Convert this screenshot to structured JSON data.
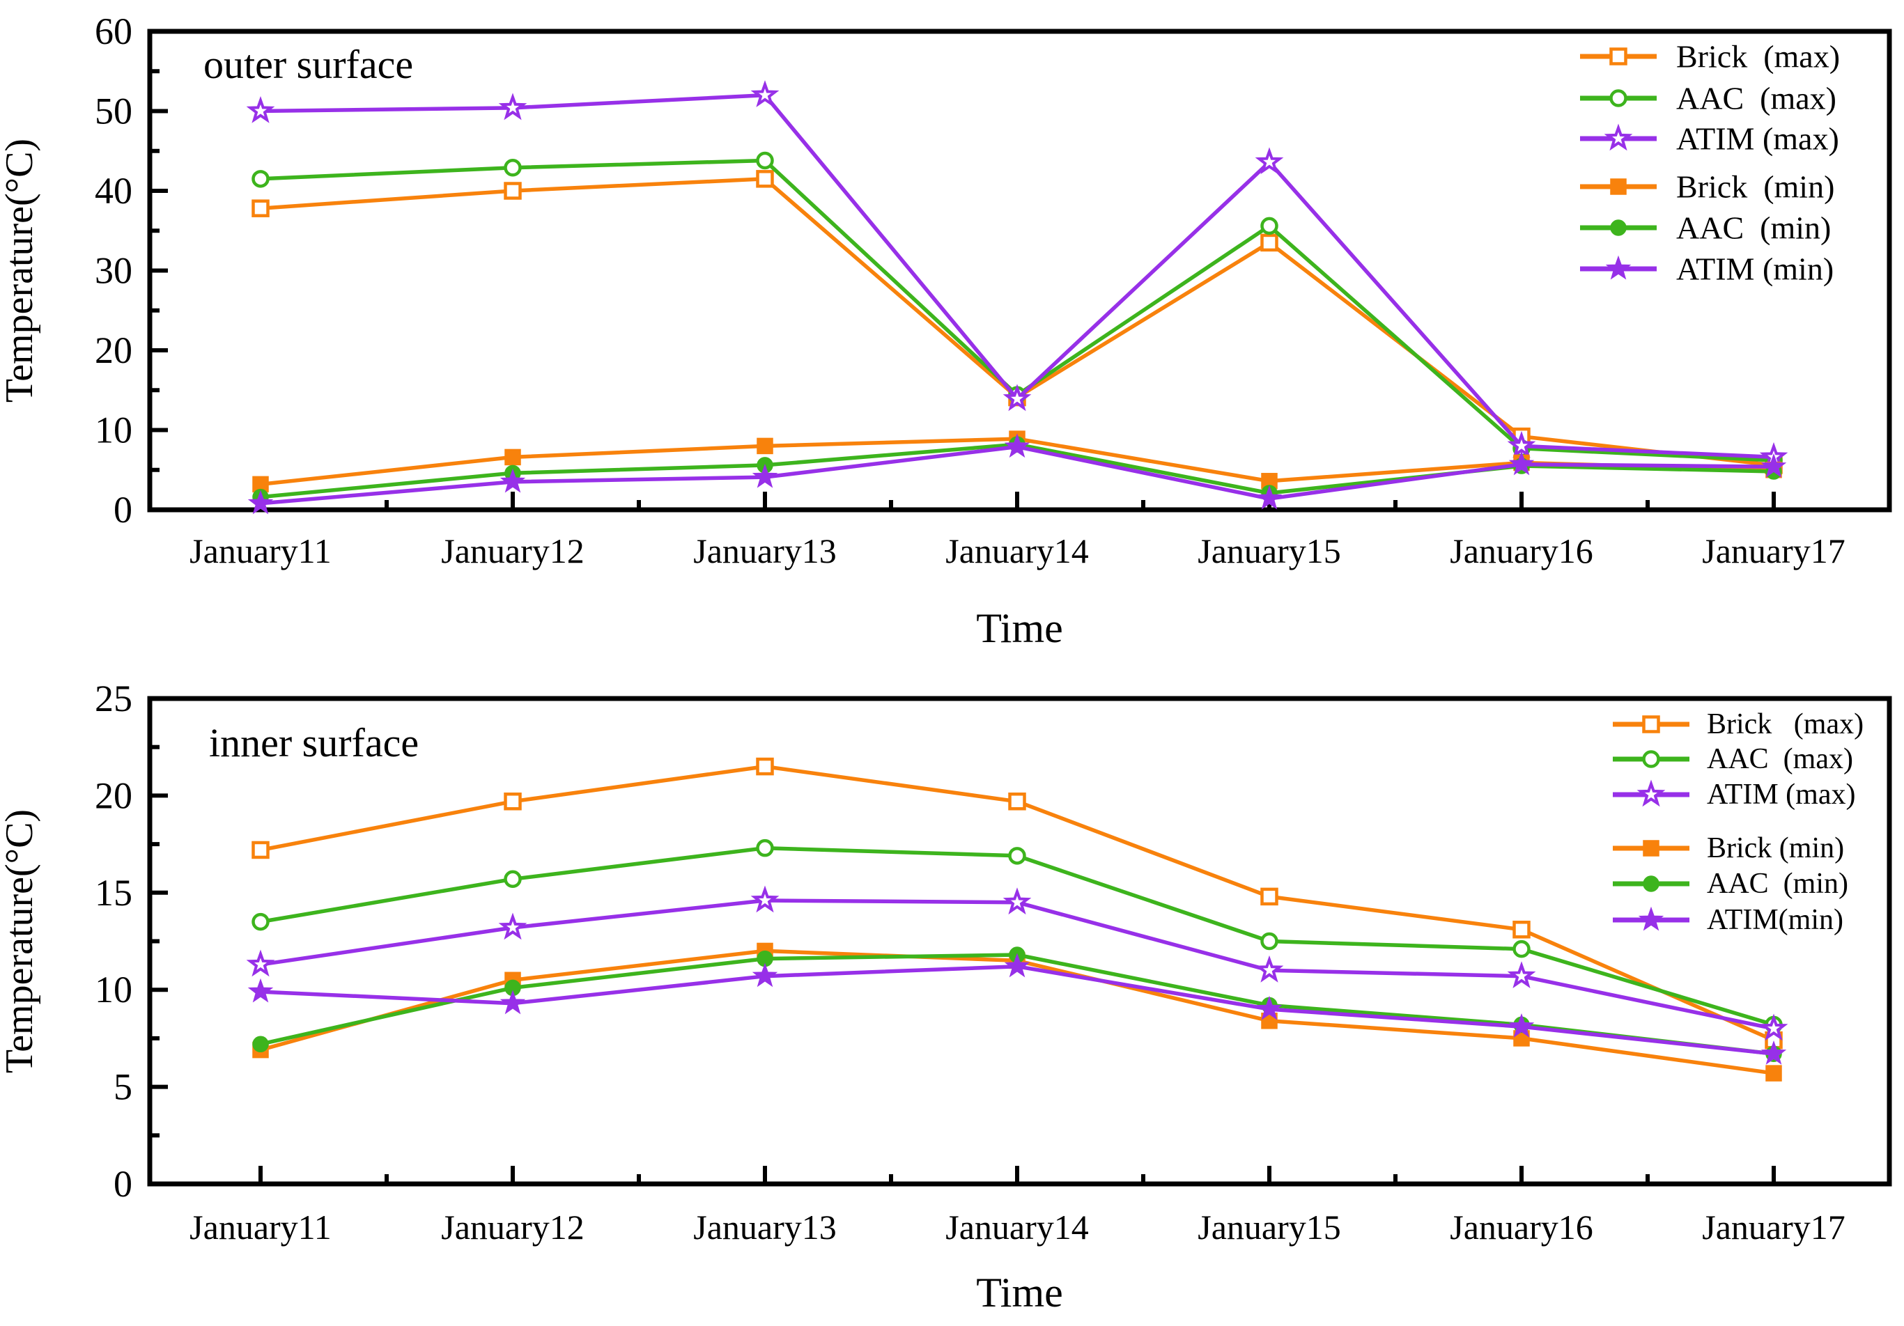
{
  "figure": {
    "background": "#ffffff",
    "axis_color": "#000000"
  },
  "colors": {
    "brick": "#F8820C",
    "aac": "#3DB41D",
    "atim": "#9730E8",
    "axis": "#000000",
    "marker_open_fill": "#ffffff"
  },
  "chart_data": [
    {
      "id": "outer",
      "type": "line",
      "panel_label": "outer surface",
      "xlabel": "Time",
      "ylabel": "Temperature(°C)",
      "categories": [
        "January11",
        "January12",
        "January13",
        "January14",
        "January15",
        "January16",
        "January17"
      ],
      "ylim": [
        0,
        60
      ],
      "ytick_major": 10,
      "ytick_minor": 5,
      "ytick_labels": [
        "0",
        "10",
        "20",
        "30",
        "40",
        "50",
        "60"
      ],
      "grid": false,
      "legend_position": "top-right",
      "series": [
        {
          "name": "Brick  (max)",
          "color_key": "brick",
          "marker": "square",
          "fill": "open",
          "values": [
            37.8,
            40.0,
            41.5,
            14.1,
            33.5,
            9.2,
            5.6
          ]
        },
        {
          "name": "AAC  (max)",
          "color_key": "aac",
          "marker": "circle",
          "fill": "open",
          "values": [
            41.5,
            42.9,
            43.8,
            14.4,
            35.6,
            7.7,
            6.2
          ]
        },
        {
          "name": "ATIM (max)",
          "color_key": "atim",
          "marker": "star",
          "fill": "open",
          "values": [
            50.0,
            50.4,
            52.0,
            13.9,
            43.6,
            8.0,
            6.6
          ]
        },
        {
          "name": "Brick  (min)",
          "color_key": "brick",
          "marker": "square",
          "fill": "solid",
          "values": [
            3.2,
            6.6,
            8.0,
            8.9,
            3.6,
            5.9,
            5.0
          ]
        },
        {
          "name": "AAC  (min)",
          "color_key": "aac",
          "marker": "circle",
          "fill": "solid",
          "values": [
            1.6,
            4.6,
            5.6,
            8.2,
            2.1,
            5.5,
            4.8
          ]
        },
        {
          "name": "ATIM (min)",
          "color_key": "atim",
          "marker": "star",
          "fill": "solid",
          "values": [
            0.8,
            3.5,
            4.1,
            7.9,
            1.4,
            5.7,
            5.4
          ]
        }
      ]
    },
    {
      "id": "inner",
      "type": "line",
      "panel_label": "inner surface",
      "xlabel": "Time",
      "ylabel": "Temperature(°C)",
      "categories": [
        "January11",
        "January12",
        "January13",
        "January14",
        "January15",
        "January16",
        "January17"
      ],
      "ylim": [
        0,
        25
      ],
      "ytick_major": 5,
      "ytick_minor": 2.5,
      "ytick_labels": [
        "0",
        "5",
        "10",
        "15",
        "20",
        "25"
      ],
      "grid": false,
      "legend_position": "top-right",
      "series": [
        {
          "name": "Brick   (max)",
          "color_key": "brick",
          "marker": "square",
          "fill": "open",
          "values": [
            17.2,
            19.7,
            21.5,
            19.7,
            14.8,
            13.1,
            7.4
          ]
        },
        {
          "name": "AAC  (max)",
          "color_key": "aac",
          "marker": "circle",
          "fill": "open",
          "values": [
            13.5,
            15.7,
            17.3,
            16.9,
            12.5,
            12.1,
            8.2
          ]
        },
        {
          "name": "ATIM (max)",
          "color_key": "atim",
          "marker": "star",
          "fill": "open",
          "values": [
            11.3,
            13.2,
            14.6,
            14.5,
            11.0,
            10.7,
            8.0
          ]
        },
        {
          "name": "Brick (min)",
          "color_key": "brick",
          "marker": "square",
          "fill": "solid",
          "values": [
            6.9,
            10.5,
            12.0,
            11.5,
            8.4,
            7.5,
            5.7
          ]
        },
        {
          "name": "AAC  (min)",
          "color_key": "aac",
          "marker": "circle",
          "fill": "solid",
          "values": [
            7.2,
            10.1,
            11.6,
            11.8,
            9.2,
            8.2,
            6.7
          ]
        },
        {
          "name": "ATIM(min)",
          "color_key": "atim",
          "marker": "star",
          "fill": "solid",
          "values": [
            9.9,
            9.3,
            10.7,
            11.2,
            9.0,
            8.1,
            6.7
          ]
        }
      ]
    }
  ]
}
